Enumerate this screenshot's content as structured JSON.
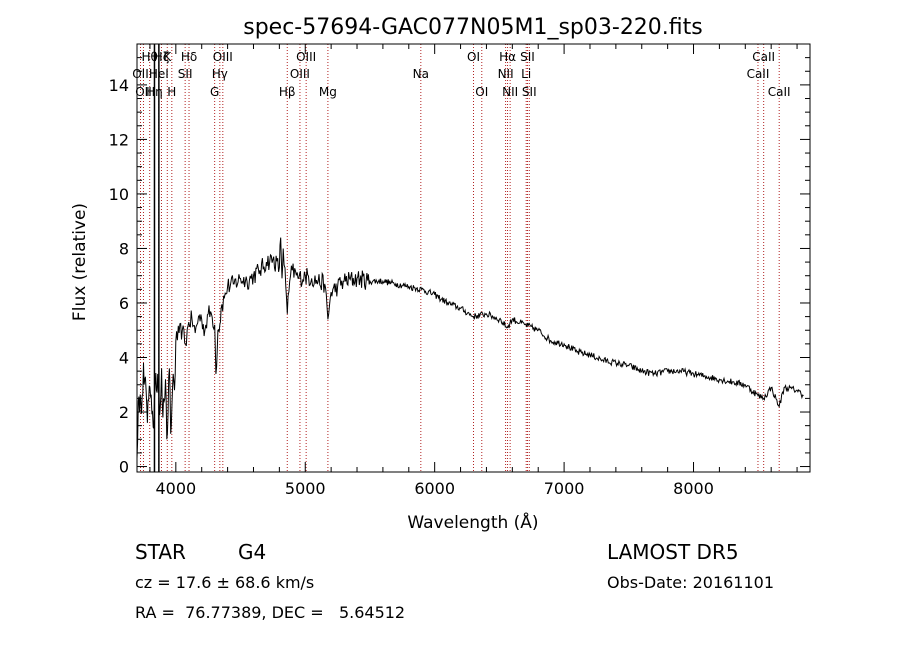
{
  "chart_data": {
    "type": "line",
    "title": "spec-57694-GAC077N05M1_sp03-220.fits",
    "xlabel": "Wavelength (Å)",
    "ylabel": "Flux (relative)",
    "xlim": [
      3700,
      8900
    ],
    "ylim": [
      -0.2,
      15.5
    ],
    "xticks": [
      4000,
      5000,
      6000,
      7000,
      8000
    ],
    "yticks": [
      0,
      2,
      4,
      6,
      8,
      10,
      12,
      14
    ],
    "grid": false,
    "series": [
      {
        "x": [
          3700,
          3710,
          3720,
          3730,
          3740,
          3750,
          3760,
          3770,
          3780,
          3790,
          3800,
          3810,
          3820,
          3830,
          3840,
          3850,
          3860,
          3870,
          3880,
          3890,
          3900,
          3910,
          3920,
          3930,
          3940,
          3950,
          3960,
          3970,
          3980,
          3990,
          4000,
          4025,
          4050,
          4075,
          4100,
          4125,
          4150,
          4175,
          4200,
          4225,
          4250,
          4275,
          4300,
          4310,
          4325,
          4340,
          4350,
          4375,
          4400,
          4450,
          4500,
          4550,
          4600,
          4650,
          4700,
          4750,
          4800,
          4810,
          4820,
          4830,
          4850,
          4861,
          4880,
          4900,
          4950,
          5000,
          5050,
          5100,
          5150,
          5175,
          5200,
          5250,
          5300,
          5400,
          5500,
          5600,
          5700,
          5800,
          5900,
          6000,
          6100,
          6200,
          6300,
          6400,
          6500,
          6563,
          6600,
          6700,
          6800,
          6900,
          7000,
          7100,
          7200,
          7300,
          7400,
          7500,
          7600,
          7700,
          7800,
          7900,
          8000,
          8100,
          8200,
          8300,
          8400,
          8498,
          8542,
          8600,
          8662,
          8700,
          8800,
          8850
        ],
        "values": [
          0.3,
          2.4,
          2.0,
          2.3,
          2.6,
          3.8,
          3.2,
          2.8,
          1.6,
          2.4,
          2.9,
          2.6,
          2.0,
          1.4,
          3.0,
          2.8,
          3.4,
          2.6,
          2.2,
          3.6,
          1.8,
          2.4,
          3.2,
          1.0,
          2.0,
          3.6,
          1.2,
          2.2,
          3.4,
          2.8,
          4.6,
          4.9,
          5.0,
          4.5,
          5.3,
          5.4,
          4.9,
          5.5,
          5.4,
          5.0,
          5.6,
          5.6,
          5.2,
          3.4,
          5.0,
          5.2,
          5.8,
          6.2,
          6.6,
          6.7,
          6.9,
          6.8,
          7.0,
          7.2,
          7.5,
          7.6,
          7.3,
          8.4,
          6.9,
          8.0,
          6.6,
          5.6,
          6.8,
          7.2,
          6.9,
          7.0,
          6.9,
          6.8,
          6.7,
          5.4,
          6.4,
          6.6,
          6.8,
          6.9,
          6.8,
          6.8,
          6.7,
          6.6,
          6.5,
          6.3,
          6.0,
          5.8,
          5.5,
          5.6,
          5.4,
          5.1,
          5.4,
          5.2,
          5.0,
          4.6,
          4.5,
          4.2,
          4.1,
          3.9,
          3.8,
          3.7,
          3.5,
          3.4,
          3.5,
          3.5,
          3.4,
          3.3,
          3.2,
          3.1,
          3.0,
          2.6,
          2.5,
          2.9,
          2.2,
          2.9,
          2.8,
          2.6
        ]
      }
    ],
    "lines": [
      {
        "x": 3727,
        "label": "OII",
        "row": 1
      },
      {
        "x": 3750,
        "label": "OII",
        "row": 2
      },
      {
        "x": 3798,
        "label": "Hθ",
        "row": 0
      },
      {
        "x": 3835,
        "label": "Hη",
        "row": 2
      },
      {
        "x": 3869,
        "label": "HeI",
        "row": 1
      },
      {
        "x": 3889,
        "label": "Hζ",
        "row": 0
      },
      {
        "x": 3934,
        "label": "K",
        "row": 0
      },
      {
        "x": 3969,
        "label": "H",
        "row": 2
      },
      {
        "x": 4072,
        "label": "SII",
        "row": 1
      },
      {
        "x": 4102,
        "label": "Hδ",
        "row": 0
      },
      {
        "x": 4300,
        "label": "G",
        "row": 2
      },
      {
        "x": 4340,
        "label": "Hγ",
        "row": 1
      },
      {
        "x": 4363,
        "label": "OIII",
        "row": 0
      },
      {
        "x": 4861,
        "label": "Hβ",
        "row": 2
      },
      {
        "x": 4959,
        "label": "OIII",
        "row": 1
      },
      {
        "x": 5007,
        "label": "OIII",
        "row": 0
      },
      {
        "x": 5175,
        "label": "Mg",
        "row": 2
      },
      {
        "x": 5893,
        "label": "Na",
        "row": 1
      },
      {
        "x": 6300,
        "label": "OI",
        "row": 0
      },
      {
        "x": 6364,
        "label": "OI",
        "row": 2
      },
      {
        "x": 6548,
        "label": "NII",
        "row": 1
      },
      {
        "x": 6563,
        "label": "Hα",
        "row": 0
      },
      {
        "x": 6583,
        "label": "NII",
        "row": 2
      },
      {
        "x": 6707,
        "label": "Li",
        "row": 1
      },
      {
        "x": 6717,
        "label": "SII",
        "row": 0
      },
      {
        "x": 6731,
        "label": "SII",
        "row": 2
      },
      {
        "x": 8498,
        "label": "CaII",
        "row": 1
      },
      {
        "x": 8542,
        "label": "CaII",
        "row": 0
      },
      {
        "x": 8662,
        "label": "CaII",
        "row": 2
      }
    ],
    "black_lines": [
      3835,
      3869
    ]
  },
  "info": {
    "class_label": "STAR",
    "subclass": "G4",
    "survey": "LAMOST DR5",
    "cz_text": "cz = 17.6 ± 68.6 km/s",
    "obs_date": "Obs-Date: 20161101",
    "coords": "RA =  76.77389, DEC =   5.64512"
  }
}
